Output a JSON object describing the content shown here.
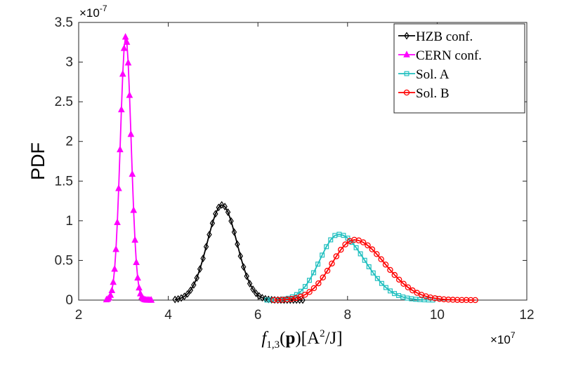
{
  "chart_data": {
    "type": "line",
    "title": "",
    "xlabel": "f_{1,3}(p)[A^2/J]",
    "ylabel": "PDF",
    "x_multiplier": "×10^7",
    "y_multiplier": "×10^-7",
    "xlim": [
      2,
      12
    ],
    "ylim": [
      0,
      3.5
    ],
    "xticks": [
      2,
      4,
      6,
      8,
      10,
      12
    ],
    "yticks": [
      0,
      0.5,
      1,
      1.5,
      2,
      2.5,
      3,
      3.5
    ],
    "grid": false,
    "legend_position": "top-right",
    "series": [
      {
        "name": "HZB conf.",
        "color": "#000000",
        "marker": "diamond",
        "shape": "gaussian",
        "mean": 5.2,
        "sigma": 0.33,
        "peak": 1.2,
        "x_range": [
          4.15,
          7.0
        ],
        "points": 42
      },
      {
        "name": "CERN conf.",
        "color": "#ff00ff",
        "marker": "triangle",
        "shape": "gaussian",
        "mean": 3.05,
        "sigma": 0.12,
        "peak": 3.32,
        "x_range": [
          2.62,
          3.62
        ],
        "points": 34
      },
      {
        "name": "Sol. A",
        "color": "#1fbfbf",
        "marker": "square",
        "shape": "skewed",
        "mean": 7.8,
        "sigma_left": 0.42,
        "sigma_right": 0.58,
        "peak": 0.83,
        "x_range": [
          6.2,
          9.9
        ],
        "points": 40
      },
      {
        "name": "Sol. B",
        "color": "#ff0000",
        "marker": "circle",
        "shape": "skewed",
        "mean": 8.15,
        "sigma_left": 0.5,
        "sigma_right": 0.68,
        "peak": 0.76,
        "x_range": [
          6.35,
          10.85
        ],
        "points": 46
      }
    ]
  }
}
